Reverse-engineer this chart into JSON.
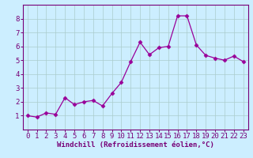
{
  "x": [
    0,
    1,
    2,
    3,
    4,
    5,
    6,
    7,
    8,
    9,
    10,
    11,
    12,
    13,
    14,
    15,
    16,
    17,
    18,
    19,
    20,
    21,
    22,
    23
  ],
  "y": [
    1.0,
    0.9,
    1.2,
    1.1,
    2.3,
    1.8,
    2.0,
    2.1,
    1.7,
    2.6,
    3.4,
    4.9,
    6.3,
    5.4,
    5.9,
    6.0,
    8.2,
    8.2,
    6.1,
    5.35,
    5.15,
    5.0,
    5.3,
    4.9
  ],
  "line_color": "#990099",
  "marker": "D",
  "marker_size": 2.5,
  "bg_color": "#cceeff",
  "grid_color": "#aacccc",
  "xlabel": "Windchill (Refroidissement éolien,°C)",
  "ylabel": "",
  "xlim": [
    -0.5,
    23.5
  ],
  "ylim": [
    0,
    9
  ],
  "yticks": [
    1,
    2,
    3,
    4,
    5,
    6,
    7,
    8
  ],
  "xticks": [
    0,
    1,
    2,
    3,
    4,
    5,
    6,
    7,
    8,
    9,
    10,
    11,
    12,
    13,
    14,
    15,
    16,
    17,
    18,
    19,
    20,
    21,
    22,
    23
  ],
  "xlabel_fontsize": 6.5,
  "tick_fontsize": 6.5,
  "axis_color": "#770077"
}
